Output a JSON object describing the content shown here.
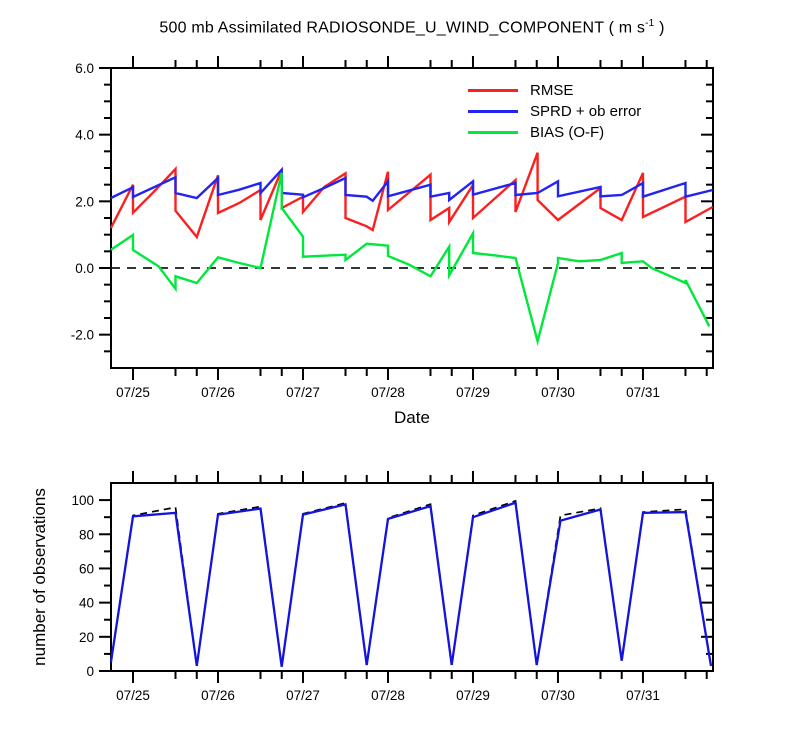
{
  "window": {
    "background": "#ffffff"
  },
  "chart_data": [
    {
      "type": "line",
      "panel": "top",
      "title": "500 mb Assimilated RADIOSONDE_U_WIND_COMPONENT ( m s-1 )",
      "title_prefix": "500 mb Assimilated RADIOSONDE_U_WIND_COMPONENT ( m s",
      "title_sup": "-1",
      "title_suffix": " )",
      "xlabel": "Date",
      "ylabel": "",
      "xlim": [
        24.741,
        31.824
      ],
      "ylim": [
        -3,
        6
      ],
      "x_ticks": [
        {
          "t": 25,
          "label": "07/25"
        },
        {
          "t": 26,
          "label": "07/26"
        },
        {
          "t": 27,
          "label": "07/27"
        },
        {
          "t": 28,
          "label": "07/28"
        },
        {
          "t": 29,
          "label": "07/29"
        },
        {
          "t": 30,
          "label": "07/30"
        },
        {
          "t": 31,
          "label": "07/31"
        }
      ],
      "x_minor_offsets": [
        0.5,
        0.75
      ],
      "y_ticks": [
        {
          "v": 6,
          "label": "6.0"
        },
        {
          "v": 4,
          "label": "4.0"
        },
        {
          "v": 2,
          "label": "2.0"
        },
        {
          "v": 0,
          "label": "0.0"
        },
        {
          "v": -2,
          "label": "-2.0"
        }
      ],
      "y_minor_step": 0.5,
      "zero_line": {
        "value": 0,
        "style": "dashed",
        "color": "#1a1a1a"
      },
      "legend": [
        {
          "label": "RMSE",
          "series": "rmse"
        },
        {
          "label": "SPRD + ob error",
          "series": "sprd"
        },
        {
          "label": "BIAS (O-F)",
          "series": "bias"
        }
      ],
      "series": [
        {
          "name": "rmse",
          "color": "#fb2020",
          "width": 2.4,
          "dash": "",
          "points": [
            [
              24.74,
              1.2
            ],
            [
              25.0,
              2.5
            ],
            [
              25.0,
              1.66
            ],
            [
              25.25,
              2.3
            ],
            [
              25.5,
              2.97
            ],
            [
              25.5,
              1.72
            ],
            [
              25.75,
              0.93
            ],
            [
              26.0,
              2.78
            ],
            [
              26.0,
              1.65
            ],
            [
              26.25,
              1.95
            ],
            [
              26.5,
              2.34
            ],
            [
              26.5,
              1.44
            ],
            [
              26.75,
              2.94
            ],
            [
              26.75,
              1.8
            ],
            [
              27.0,
              2.14
            ],
            [
              27.0,
              1.68
            ],
            [
              27.25,
              2.43
            ],
            [
              27.5,
              2.84
            ],
            [
              27.5,
              1.5
            ],
            [
              27.75,
              1.25
            ],
            [
              27.82,
              1.14
            ],
            [
              28.0,
              2.89
            ],
            [
              28.0,
              1.74
            ],
            [
              28.5,
              2.8
            ],
            [
              28.5,
              1.44
            ],
            [
              28.72,
              1.8
            ],
            [
              28.72,
              1.38
            ],
            [
              29.0,
              2.49
            ],
            [
              29.0,
              1.5
            ],
            [
              29.5,
              2.64
            ],
            [
              29.5,
              1.68
            ],
            [
              29.76,
              3.46
            ],
            [
              29.76,
              2.04
            ],
            [
              30.0,
              1.44
            ],
            [
              30.5,
              2.4
            ],
            [
              30.5,
              1.8
            ],
            [
              30.75,
              1.44
            ],
            [
              31.0,
              2.85
            ],
            [
              31.0,
              1.53
            ],
            [
              31.5,
              2.14
            ],
            [
              31.5,
              1.38
            ],
            [
              31.82,
              1.83
            ]
          ]
        },
        {
          "name": "sprd",
          "color": "#2424f0",
          "width": 2.4,
          "dash": "",
          "points": [
            [
              24.74,
              2.1
            ],
            [
              25.0,
              2.42
            ],
            [
              25.0,
              2.13
            ],
            [
              25.5,
              2.72
            ],
            [
              25.5,
              2.25
            ],
            [
              25.75,
              2.1
            ],
            [
              26.0,
              2.7
            ],
            [
              26.0,
              2.19
            ],
            [
              26.25,
              2.35
            ],
            [
              26.5,
              2.55
            ],
            [
              26.5,
              2.25
            ],
            [
              26.75,
              2.95
            ],
            [
              26.75,
              2.25
            ],
            [
              27.0,
              2.2
            ],
            [
              27.0,
              2.12
            ],
            [
              27.25,
              2.4
            ],
            [
              27.5,
              2.7
            ],
            [
              27.5,
              2.19
            ],
            [
              27.75,
              2.14
            ],
            [
              27.82,
              2.02
            ],
            [
              28.0,
              2.6
            ],
            [
              28.0,
              2.15
            ],
            [
              28.5,
              2.5
            ],
            [
              28.5,
              2.14
            ],
            [
              28.72,
              2.25
            ],
            [
              28.72,
              2.04
            ],
            [
              29.0,
              2.6
            ],
            [
              29.0,
              2.2
            ],
            [
              29.5,
              2.55
            ],
            [
              29.5,
              2.19
            ],
            [
              29.76,
              2.25
            ],
            [
              30.0,
              2.6
            ],
            [
              30.0,
              2.15
            ],
            [
              30.5,
              2.43
            ],
            [
              30.5,
              2.15
            ],
            [
              30.75,
              2.19
            ],
            [
              31.0,
              2.55
            ],
            [
              31.0,
              2.14
            ],
            [
              31.5,
              2.55
            ],
            [
              31.5,
              2.14
            ],
            [
              31.82,
              2.34
            ]
          ]
        },
        {
          "name": "bias",
          "color": "#00e83c",
          "width": 2.4,
          "dash": "",
          "points": [
            [
              24.74,
              0.55
            ],
            [
              25.0,
              0.99
            ],
            [
              25.0,
              0.54
            ],
            [
              25.3,
              0.05
            ],
            [
              25.5,
              -0.62
            ],
            [
              25.5,
              -0.25
            ],
            [
              25.75,
              -0.45
            ],
            [
              26.0,
              0.32
            ],
            [
              26.25,
              0.15
            ],
            [
              26.5,
              0.0
            ],
            [
              26.75,
              2.86
            ],
            [
              26.75,
              1.8
            ],
            [
              27.0,
              0.94
            ],
            [
              27.0,
              0.34
            ],
            [
              27.25,
              0.37
            ],
            [
              27.5,
              0.4
            ],
            [
              27.5,
              0.24
            ],
            [
              27.75,
              0.73
            ],
            [
              28.0,
              0.67
            ],
            [
              28.0,
              0.36
            ],
            [
              28.25,
              0.1
            ],
            [
              28.5,
              -0.25
            ],
            [
              28.72,
              0.64
            ],
            [
              28.72,
              -0.22
            ],
            [
              29.0,
              1.04
            ],
            [
              29.0,
              0.45
            ],
            [
              29.25,
              0.38
            ],
            [
              29.5,
              0.3
            ],
            [
              29.76,
              -2.2
            ],
            [
              30.0,
              0.15
            ],
            [
              30.0,
              0.3
            ],
            [
              30.25,
              0.2
            ],
            [
              30.5,
              0.24
            ],
            [
              30.75,
              0.45
            ],
            [
              30.75,
              0.15
            ],
            [
              31.0,
              0.2
            ],
            [
              31.1,
              0.0
            ],
            [
              31.5,
              -0.45
            ],
            [
              31.5,
              -0.36
            ],
            [
              31.78,
              -1.75
            ]
          ]
        }
      ]
    },
    {
      "type": "line",
      "panel": "bottom",
      "title": "",
      "xlabel": "",
      "ylabel": "number of observations",
      "xlim": [
        24.741,
        31.824
      ],
      "ylim": [
        0,
        110
      ],
      "x_ticks": [
        {
          "t": 25,
          "label": "07/25"
        },
        {
          "t": 26,
          "label": "07/26"
        },
        {
          "t": 27,
          "label": "07/27"
        },
        {
          "t": 28,
          "label": "07/28"
        },
        {
          "t": 29,
          "label": "07/29"
        },
        {
          "t": 30,
          "label": "07/30"
        },
        {
          "t": 31,
          "label": "07/31"
        }
      ],
      "x_minor_offsets": [
        0.5,
        0.75
      ],
      "y_ticks": [
        {
          "v": 0,
          "label": "0"
        },
        {
          "v": 20,
          "label": "20"
        },
        {
          "v": 40,
          "label": "40"
        },
        {
          "v": 60,
          "label": "60"
        },
        {
          "v": 80,
          "label": "80"
        },
        {
          "v": 100,
          "label": "100"
        }
      ],
      "y_minor_step": 10,
      "series": [
        {
          "name": "obs-count-dashed",
          "color": "#000000",
          "width": 1.7,
          "dash": "7,5",
          "points": [
            [
              24.74,
              5
            ],
            [
              25.0,
              91
            ],
            [
              25.5,
              95.8
            ],
            [
              25.75,
              3
            ],
            [
              26.0,
              92
            ],
            [
              26.5,
              96.2
            ],
            [
              26.75,
              2.5
            ],
            [
              27.0,
              92
            ],
            [
              27.5,
              98.3
            ],
            [
              27.75,
              3.5
            ],
            [
              28.0,
              89.5
            ],
            [
              28.5,
              97.6
            ],
            [
              28.75,
              3.5
            ],
            [
              29.0,
              91
            ],
            [
              29.5,
              99.5
            ],
            [
              29.75,
              3.5
            ],
            [
              30.03,
              91
            ],
            [
              30.5,
              95.2
            ],
            [
              30.75,
              6
            ],
            [
              31.0,
              93
            ],
            [
              31.5,
              94.6
            ],
            [
              31.8,
              3
            ]
          ]
        },
        {
          "name": "obs-count-solid",
          "color": "#1414dc",
          "width": 2.3,
          "dash": "",
          "points": [
            [
              24.74,
              5
            ],
            [
              25.0,
              90.5
            ],
            [
              25.5,
              92.5
            ],
            [
              25.75,
              3
            ],
            [
              26.0,
              91.5
            ],
            [
              26.5,
              95
            ],
            [
              26.75,
              2.5
            ],
            [
              27.0,
              91.5
            ],
            [
              27.5,
              97.5
            ],
            [
              27.75,
              3.5
            ],
            [
              28.0,
              89
            ],
            [
              28.5,
              96.5
            ],
            [
              28.75,
              3.5
            ],
            [
              29.0,
              90
            ],
            [
              29.5,
              98.5
            ],
            [
              29.75,
              3.5
            ],
            [
              30.03,
              88
            ],
            [
              30.5,
              94.5
            ],
            [
              30.75,
              6
            ],
            [
              31.0,
              92.5
            ],
            [
              31.5,
              93
            ],
            [
              31.8,
              3
            ]
          ]
        }
      ]
    }
  ],
  "layout_note": "EnKF radiosonde DA monitoring: top = RMSE/spread/bias sawtooth, bottom = observation counts"
}
